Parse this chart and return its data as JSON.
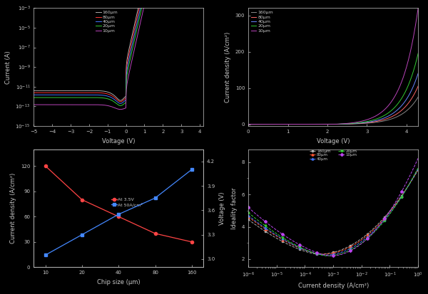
{
  "background_color": "#000000",
  "text_color": "#c8c8c8",
  "sizes_iv": [
    "160μm",
    "80μm",
    "40μm",
    "20μm",
    "10μm"
  ],
  "colors_iv": [
    "#aaaaaa",
    "#ff3333",
    "#4477ff",
    "#33cc33",
    "#bb44bb"
  ],
  "colors_jv": [
    "#888888",
    "#ff6666",
    "#6688ff",
    "#33cc33",
    "#bb44bb"
  ],
  "chip_sizes": [
    10,
    20,
    40,
    80,
    160
  ],
  "jv_at35": [
    120,
    80,
    60,
    40,
    30
  ],
  "v_at50": [
    3.05,
    3.3,
    3.55,
    3.75,
    4.1
  ],
  "plot1_xlabel": "Voltage (V)",
  "plot1_ylabel": "Current (A)",
  "plot2_xlabel": "Voltage (V)",
  "plot2_ylabel": "Current density (A/cm²)",
  "plot3_xlabel": "Chip size (μm)",
  "plot3_ylabel_left": "Current density (A/cm²)",
  "plot3_ylabel_right": "Voltage (V)",
  "plot4_xlabel": "Current density (A/cm²)",
  "plot4_ylabel": "Ideality factor",
  "legend3_left": "At 3.5V",
  "legend3_right": "At 50A/cm²",
  "sizes4": [
    "160μm",
    "80μm",
    "40μm",
    "20μm",
    "10μm"
  ],
  "colors4": [
    "#aaaaaa",
    "#ff5533",
    "#4477ff",
    "#33cc33",
    "#bb44ee"
  ],
  "markers4": [
    "s",
    "^",
    "^",
    "v",
    "D"
  ]
}
